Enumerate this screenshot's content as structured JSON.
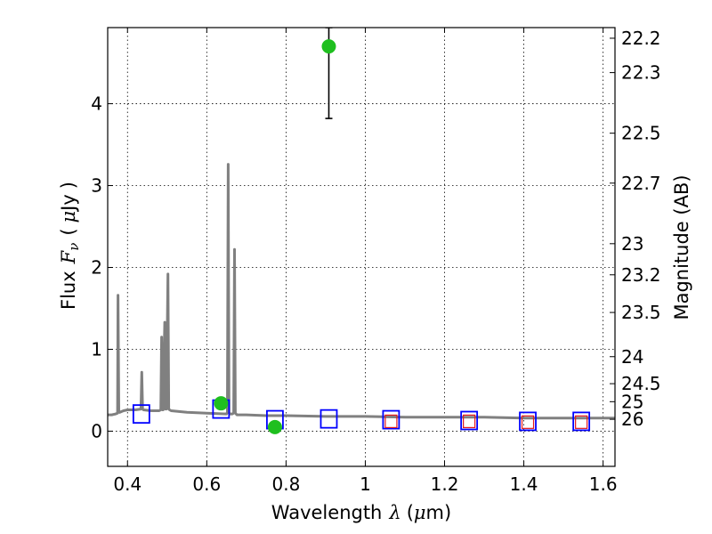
{
  "chart_data": {
    "type": "line",
    "xlabel": "Wavelength",
    "xlabel_symbol": "λ",
    "xlabel_unit_open": "(",
    "xlabel_unit_mu": "μ",
    "xlabel_unit_rest": "m)",
    "ylabel": "Flux",
    "ylabel_symbol": "F",
    "ylabel_subscript": "ν",
    "ylabel_unit_open": "(",
    "ylabel_unit_mu": "μ",
    "ylabel_unit_rest": "Jy",
    "ylabel_unit_close": ")",
    "y2label": "Magnitude (AB)",
    "xlim": [
      0.35,
      1.63
    ],
    "ylim": [
      -0.43,
      4.93
    ],
    "x_ticks": [
      0.4,
      0.6,
      0.8,
      1.0,
      1.2,
      1.4,
      1.6
    ],
    "x_tick_labels": [
      "0.4",
      "0.6",
      "0.8",
      "1",
      "1.2",
      "1.4",
      "1.6"
    ],
    "y_ticks": [
      0,
      1,
      2,
      3,
      4
    ],
    "y_tick_labels": [
      "0",
      "1",
      "2",
      "3",
      "4"
    ],
    "y2_ticks": [
      {
        "label": "22.2",
        "flux": 4.8
      },
      {
        "label": "22.3",
        "flux": 4.38
      },
      {
        "label": "22.5",
        "flux": 3.64
      },
      {
        "label": "22.7",
        "flux": 3.03
      },
      {
        "label": "23",
        "flux": 2.29
      },
      {
        "label": "23.2",
        "flux": 1.91
      },
      {
        "label": "23.5",
        "flux": 1.45
      },
      {
        "label": "24",
        "flux": 0.91
      },
      {
        "label": "24.5",
        "flux": 0.58
      },
      {
        "label": "25",
        "flux": 0.36
      },
      {
        "label": "26",
        "flux": 0.145
      }
    ],
    "grid": true,
    "colors": {
      "spectrum": "#808080",
      "observed": "#1fbf1f",
      "model_blue": "#0000ff",
      "model_red": "#e31a1c",
      "frame": "#000000",
      "grid": "#000000"
    },
    "series": [
      {
        "kind": "line",
        "x": [
          0.35,
          0.36,
          0.37,
          0.375,
          0.376,
          0.378,
          0.38,
          0.39,
          0.4,
          0.42,
          0.434,
          0.436,
          0.438,
          0.44,
          0.46,
          0.48,
          0.484,
          0.486,
          0.488,
          0.49,
          0.494,
          0.496,
          0.498,
          0.502,
          0.504,
          0.506,
          0.51,
          0.55,
          0.6,
          0.65,
          0.652,
          0.654,
          0.656,
          0.658,
          0.66,
          0.664,
          0.668,
          0.67,
          0.672,
          0.674,
          0.676,
          0.7,
          0.75,
          0.8,
          0.9,
          1.0,
          1.1,
          1.2,
          1.3,
          1.4,
          1.5,
          1.63
        ],
        "y": [
          0.2,
          0.2,
          0.21,
          0.22,
          1.66,
          0.24,
          0.23,
          0.25,
          0.26,
          0.26,
          0.27,
          0.72,
          0.27,
          0.26,
          0.25,
          0.25,
          0.26,
          1.15,
          0.26,
          0.26,
          1.33,
          0.27,
          0.27,
          1.92,
          0.27,
          0.26,
          0.25,
          0.23,
          0.22,
          0.21,
          0.23,
          3.26,
          0.23,
          0.21,
          0.21,
          0.21,
          0.22,
          2.22,
          0.22,
          0.21,
          0.2,
          0.2,
          0.19,
          0.19,
          0.18,
          0.18,
          0.17,
          0.17,
          0.17,
          0.16,
          0.16,
          0.16
        ]
      },
      {
        "kind": "points",
        "x": [
          0.636,
          0.772,
          0.908
        ],
        "y": [
          0.34,
          0.05,
          4.7
        ],
        "yerr_low": [
          0.33,
          0.04,
          3.82
        ],
        "yerr_high": [
          0.36,
          0.06,
          4.93
        ]
      },
      {
        "kind": "model-squares",
        "x": [
          0.435,
          0.636,
          0.772,
          0.908,
          1.065,
          1.262,
          1.41,
          1.545
        ],
        "y": [
          0.21,
          0.27,
          0.14,
          0.15,
          0.14,
          0.13,
          0.12,
          0.12
        ]
      },
      {
        "kind": "model-squares-inner",
        "x": [
          1.065,
          1.262,
          1.41,
          1.545
        ],
        "y": [
          0.12,
          0.12,
          0.11,
          0.11
        ]
      }
    ]
  }
}
